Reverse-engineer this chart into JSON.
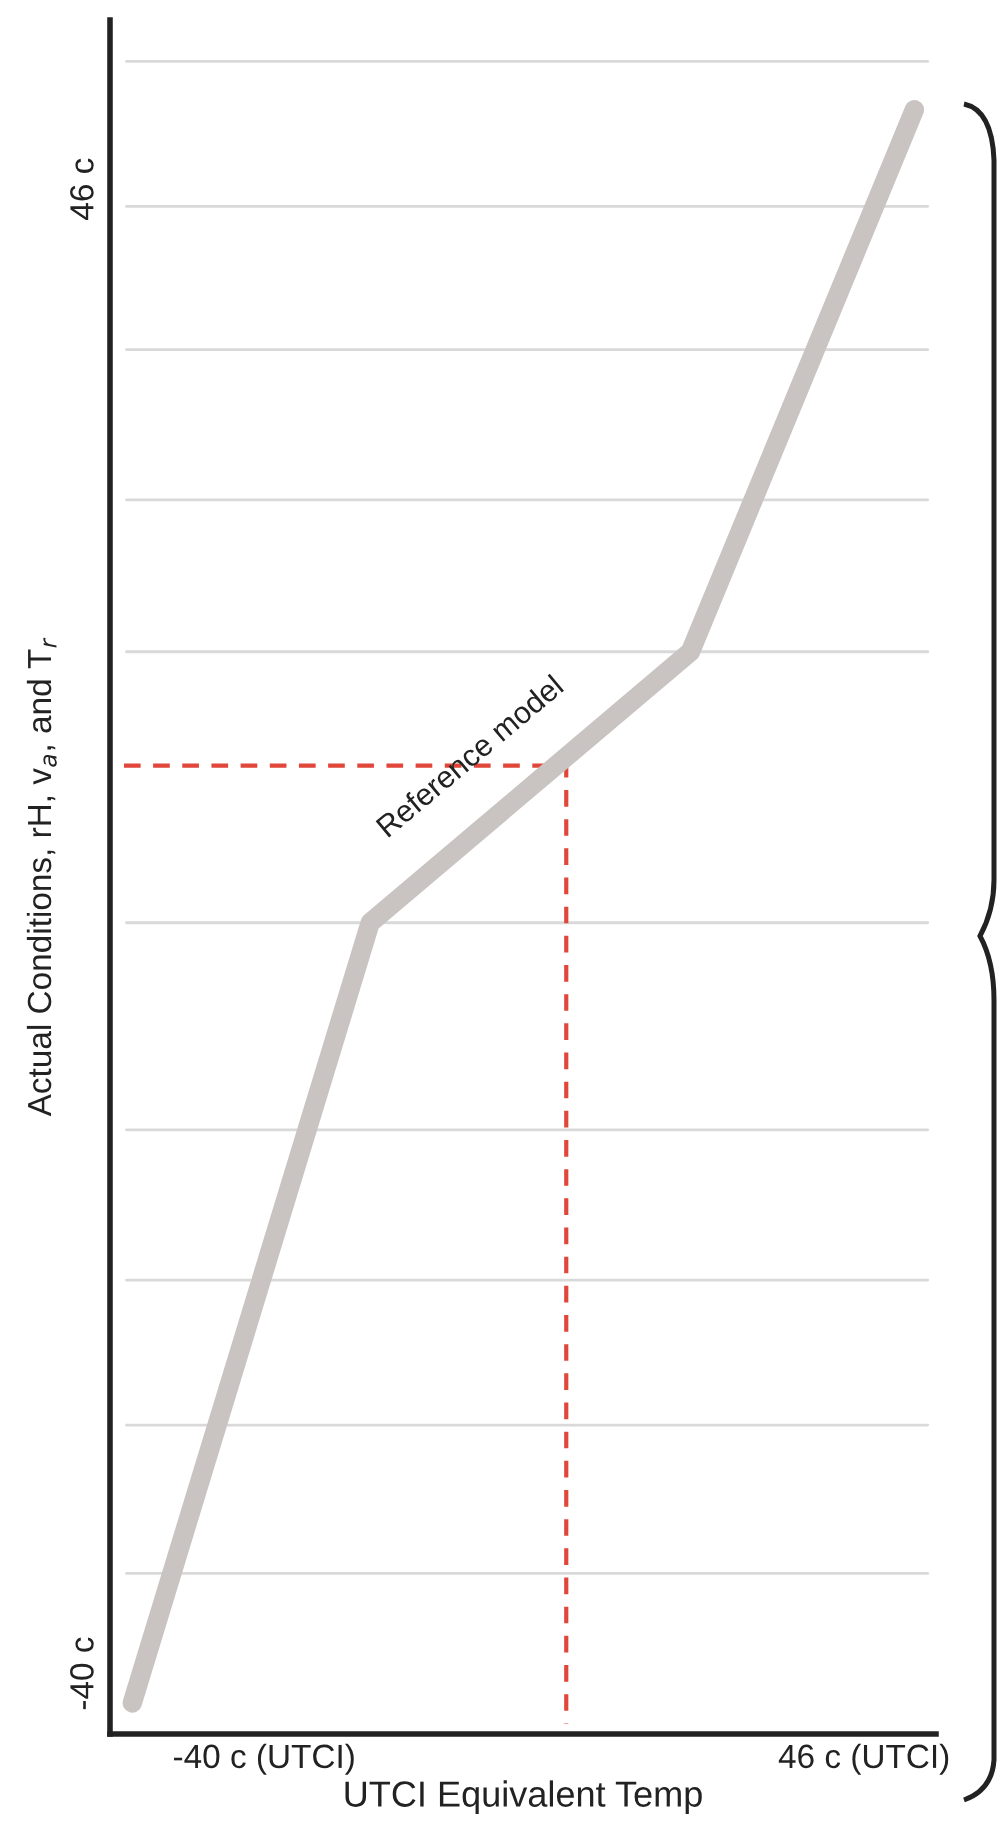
{
  "chart_data": {
    "type": "line",
    "xlabel": "UTCI Equivalent Temp",
    "ylabel": "Actual Conditions, rH, v$_{a}$, and T$_{r}$",
    "xlim": [
      -62.1,
      56.3
    ],
    "ylim": [
      -43.5,
      55.8
    ],
    "xticks": [
      {
        "value": -40,
        "label": "-40 c (UTCI)"
      },
      {
        "value": 46,
        "label": "46 c (UTCI)"
      }
    ],
    "yticks": [
      {
        "value": -40,
        "label": "-40 c"
      },
      {
        "value": -34.2,
        "label": null
      },
      {
        "value": -25.6,
        "label": null
      },
      {
        "value": -17.2,
        "label": null
      },
      {
        "value": -8.5,
        "label": null
      },
      {
        "value": 3.5,
        "label": null
      },
      {
        "value": 19.2,
        "label": null
      },
      {
        "value": 28.0,
        "label": null
      },
      {
        "value": 36.7,
        "label": null
      },
      {
        "value": 45.0,
        "label": null
      },
      {
        "value": 46,
        "label": "46 c"
      },
      {
        "value": 53.4,
        "label": null
      }
    ],
    "grid": "y",
    "marker": "none",
    "series": [
      {
        "x": [
          -58.9,
          -24.8,
          21.1,
          53.2
        ],
        "values": [
          -41.7,
          3.5,
          19.2,
          50.6
        ],
        "color": "#c9c4c1",
        "line_style": "solid"
      },
      {
        "x": [
          -60.1,
          3.3,
          3.3
        ],
        "values": [
          12.6,
          12.6,
          -42.9
        ],
        "color": "#e0463a",
        "line_style": "dashed"
      }
    ],
    "annotations": [
      {
        "text": "Reference model",
        "x": -9.0,
        "y": 12.4
      }
    ]
  }
}
